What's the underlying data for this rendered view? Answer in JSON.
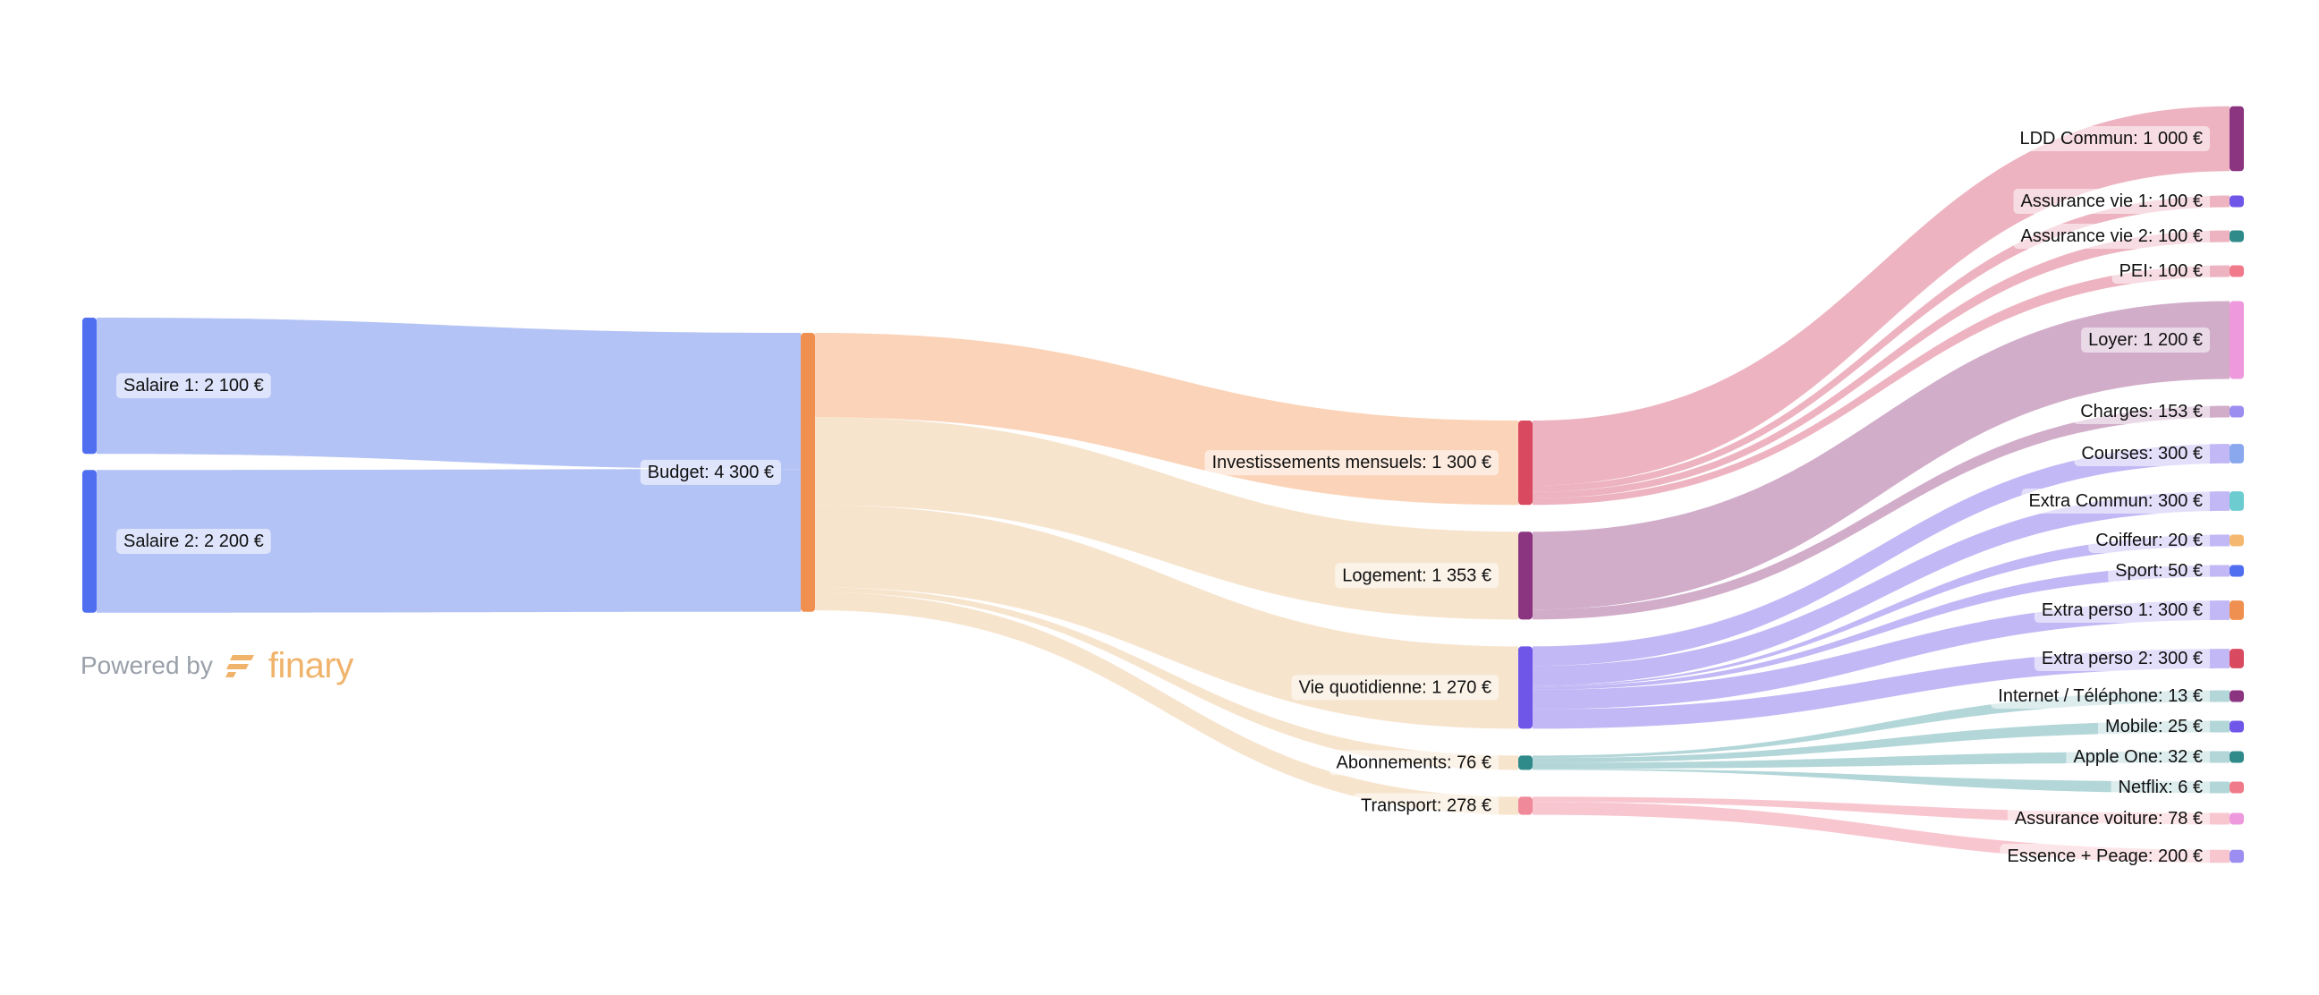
{
  "branding": {
    "powered_by": "Powered by",
    "logo_text": "finary",
    "logo_color": "#f0b36b"
  },
  "chart_data": {
    "type": "sankey",
    "currency": "€",
    "nodes": [
      {
        "id": "salaire1",
        "label": "Salaire 1: 2 100 €",
        "value": 2100,
        "color": "#4f6ef0"
      },
      {
        "id": "salaire2",
        "label": "Salaire 2: 2 200 €",
        "value": 2200,
        "color": "#4f6ef0"
      },
      {
        "id": "budget",
        "label": "Budget: 4 300 €",
        "value": 4300,
        "color": "#f09050"
      },
      {
        "id": "invest",
        "label": "Investissements mensuels: 1 300 €",
        "value": 1300,
        "color": "#d94a60"
      },
      {
        "id": "logement",
        "label": "Logement: 1 353 €",
        "value": 1353,
        "color": "#8b3580"
      },
      {
        "id": "vie",
        "label": "Vie quotidienne: 1 270 €",
        "value": 1270,
        "color": "#6f55e8"
      },
      {
        "id": "abonnements",
        "label": "Abonnements: 76 €",
        "value": 76,
        "color": "#2f8a8a"
      },
      {
        "id": "transport",
        "label": "Transport: 278 €",
        "value": 278,
        "color": "#f08a9a"
      },
      {
        "id": "ldd",
        "label": "LDD Commun: 1 000 €",
        "value": 1000,
        "color": "#8b3580"
      },
      {
        "id": "av1",
        "label": "Assurance vie 1: 100 €",
        "value": 100,
        "color": "#6f55e8"
      },
      {
        "id": "av2",
        "label": "Assurance vie 2: 100 €",
        "value": 100,
        "color": "#2f8a8a"
      },
      {
        "id": "pei",
        "label": "PEI: 100 €",
        "value": 100,
        "color": "#f07a8a"
      },
      {
        "id": "loyer",
        "label": "Loyer: 1 200 €",
        "value": 1200,
        "color": "#ee99dd"
      },
      {
        "id": "charges",
        "label": "Charges: 153 €",
        "value": 153,
        "color": "#9b8ef0"
      },
      {
        "id": "courses",
        "label": "Courses: 300 €",
        "value": 300,
        "color": "#8aa8ee"
      },
      {
        "id": "extracommun",
        "label": "Extra Commun: 300 €",
        "value": 300,
        "color": "#6cccd0"
      },
      {
        "id": "coiffeur",
        "label": "Coiffeur: 20 €",
        "value": 20,
        "color": "#f5b870"
      },
      {
        "id": "sport",
        "label": "Sport: 50 €",
        "value": 50,
        "color": "#4f6ef0"
      },
      {
        "id": "extraperso1",
        "label": "Extra perso 1: 300 €",
        "value": 300,
        "color": "#f09050"
      },
      {
        "id": "extraperso2",
        "label": "Extra perso 2: 300 €",
        "value": 300,
        "color": "#d94a60"
      },
      {
        "id": "internet",
        "label": "Internet / Téléphone: 13 €",
        "value": 13,
        "color": "#8b3580"
      },
      {
        "id": "mobile",
        "label": "Mobile: 25 €",
        "value": 25,
        "color": "#6f55e8"
      },
      {
        "id": "appleone",
        "label": "Apple One: 32 €",
        "value": 32,
        "color": "#2f8a8a"
      },
      {
        "id": "netflix",
        "label": "Netflix: 6 €",
        "value": 6,
        "color": "#f07a8a"
      },
      {
        "id": "assurancevoiture",
        "label": "Assurance voiture: 78 €",
        "value": 78,
        "color": "#ee99dd"
      },
      {
        "id": "essence",
        "label": "Essence + Peage: 200 €",
        "value": 200,
        "color": "#9b8ef0"
      }
    ],
    "links": [
      {
        "source": "salaire1",
        "target": "budget",
        "value": 2100,
        "color": "#b4c3f5"
      },
      {
        "source": "salaire2",
        "target": "budget",
        "value": 2200,
        "color": "#b4c3f5"
      },
      {
        "source": "budget",
        "target": "invest",
        "value": 1300,
        "color": "#fbd3b8"
      },
      {
        "source": "budget",
        "target": "logement",
        "value": 1353,
        "color": "#f7e4cd"
      },
      {
        "source": "budget",
        "target": "vie",
        "value": 1270,
        "color": "#f7e4cd"
      },
      {
        "source": "budget",
        "target": "abonnements",
        "value": 76,
        "color": "#f7e4cd"
      },
      {
        "source": "budget",
        "target": "transport",
        "value": 278,
        "color": "#f7e4cd"
      },
      {
        "source": "invest",
        "target": "ldd",
        "value": 1000,
        "color": "#edb3c0"
      },
      {
        "source": "invest",
        "target": "av1",
        "value": 100,
        "color": "#edb3c0"
      },
      {
        "source": "invest",
        "target": "av2",
        "value": 100,
        "color": "#edb3c0"
      },
      {
        "source": "invest",
        "target": "pei",
        "value": 100,
        "color": "#edb3c0"
      },
      {
        "source": "logement",
        "target": "loyer",
        "value": 1200,
        "color": "#d1adca"
      },
      {
        "source": "logement",
        "target": "charges",
        "value": 153,
        "color": "#d1adca"
      },
      {
        "source": "vie",
        "target": "courses",
        "value": 300,
        "color": "#c2b8f5"
      },
      {
        "source": "vie",
        "target": "extracommun",
        "value": 300,
        "color": "#c2b8f5"
      },
      {
        "source": "vie",
        "target": "coiffeur",
        "value": 20,
        "color": "#c2b8f5"
      },
      {
        "source": "vie",
        "target": "sport",
        "value": 50,
        "color": "#c2b8f5"
      },
      {
        "source": "vie",
        "target": "extraperso1",
        "value": 300,
        "color": "#c2b8f5"
      },
      {
        "source": "vie",
        "target": "extraperso2",
        "value": 300,
        "color": "#c2b8f5"
      },
      {
        "source": "abonnements",
        "target": "internet",
        "value": 13,
        "color": "#b3d6d8"
      },
      {
        "source": "abonnements",
        "target": "mobile",
        "value": 25,
        "color": "#b3d6d8"
      },
      {
        "source": "abonnements",
        "target": "appleone",
        "value": 32,
        "color": "#b3d6d8"
      },
      {
        "source": "abonnements",
        "target": "netflix",
        "value": 6,
        "color": "#b3d6d8"
      },
      {
        "source": "transport",
        "target": "assurancevoiture",
        "value": 78,
        "color": "#f8c6cf"
      },
      {
        "source": "transport",
        "target": "essence",
        "value": 200,
        "color": "#f8c6cf"
      }
    ]
  }
}
